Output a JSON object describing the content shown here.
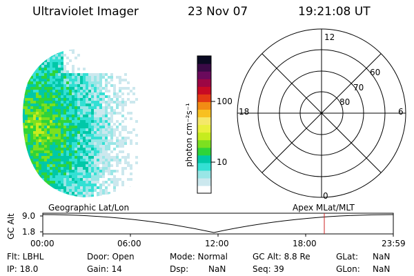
{
  "header": {
    "instrument": "Ultraviolet Imager",
    "date": "23 Nov 07",
    "time": "19:21:08 UT"
  },
  "colorbar": {
    "unit_label": "photon cm⁻²s⁻¹",
    "ticks": [
      "100",
      "10"
    ],
    "colors": [
      "#ffffff",
      "#cce8ee",
      "#99e6e6",
      "#33e0d4",
      "#00c8a8",
      "#2ed43a",
      "#7ce020",
      "#c6ec1e",
      "#eaf03e",
      "#f5e86a",
      "#f8c020",
      "#f28c14",
      "#e33a14",
      "#c80a24",
      "#9c0644",
      "#6a0a5c",
      "#3a0a46",
      "#0a0a22"
    ]
  },
  "polar_plot": {
    "mlt_labels": {
      "top": "12",
      "bottom": "0",
      "left": "18",
      "right": "6"
    },
    "lat_labels": [
      "60",
      "70",
      "80"
    ]
  },
  "timeline": {
    "left_label": "Geographic Lat/Lon",
    "right_label": "Apex MLat/MLT",
    "axis_label": "GC Alt",
    "y_ticks": [
      "9.0",
      "1.8"
    ],
    "x_ticks": [
      "00:00",
      "06:00",
      "12:00",
      "18:00",
      "23:59"
    ],
    "marker_color": "#cc2222"
  },
  "status": {
    "flt": "Flt: LBHL",
    "door": "Door: Open",
    "mode": "Mode: Normal",
    "gc_alt": "GC Alt: 8.8 Re",
    "glat_label": "GLat:",
    "glat_value": "NaN",
    "ip": "IP: 18.0",
    "gain": "Gain: 14",
    "dsp": "Dsp:",
    "dsp_value": "NaN",
    "seq": "Seq: 39",
    "glon_label": "GLon:",
    "glon_value": "NaN"
  }
}
